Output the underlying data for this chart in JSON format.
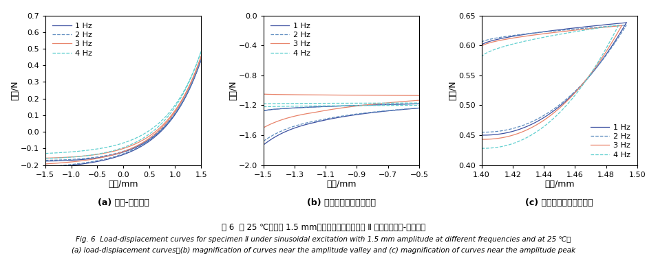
{
  "colors": {
    "1hz": "#3B4FA0",
    "2hz": "#5B8BBF",
    "3hz": "#E8836A",
    "4hz": "#5ECFCF"
  },
  "fig_width": 9.4,
  "fig_height": 3.76,
  "subplot_a": {
    "xlabel": "位移/mm",
    "ylabel": "载荷/N",
    "title": "(a) 载荷-位移曲线",
    "xlim": [
      -1.5,
      1.5
    ],
    "ylim": [
      -0.2,
      0.7
    ],
    "xticks": [
      -1.5,
      -1.0,
      -0.5,
      0.0,
      0.5,
      1.0,
      1.5
    ],
    "yticks": [
      -0.2,
      -0.1,
      0.0,
      0.1,
      0.2,
      0.3,
      0.4,
      0.5,
      0.6,
      0.7
    ]
  },
  "subplot_b": {
    "xlabel": "位移/mm",
    "ylabel": "载荷/N",
    "title": "(b) 振幅谷値附近曲线放大",
    "xlim": [
      -1.5,
      -0.5
    ],
    "ylim": [
      -2.0,
      0.0
    ],
    "xticks": [
      -1.5,
      -1.3,
      -1.1,
      -0.9,
      -0.7,
      -0.5
    ],
    "yticks": [
      -2.0,
      -1.6,
      -1.2,
      -0.8,
      -0.4,
      0.0
    ]
  },
  "subplot_c": {
    "xlabel": "位移/mm",
    "ylabel": "载荷/N",
    "title": "(c) 振幅峰値附近曲线放大",
    "xlim": [
      1.4,
      1.5
    ],
    "ylim": [
      0.4,
      0.65
    ],
    "xticks": [
      1.4,
      1.42,
      1.44,
      1.46,
      1.48,
      1.5
    ],
    "yticks": [
      0.4,
      0.45,
      0.5,
      0.55,
      0.6,
      0.65
    ]
  },
  "caption_cn": "图 6  在 25 ℃，振幅 1.5 mm、不同频率激励作用下 Ⅱ 类试样的载荷-位移曲线",
  "caption_en1": "Fig. 6  Load-displacement curves for specimen Ⅱ under sinusoidal excitation with 1.5 mm amplitude at different frequencies and at 25 ℃：",
  "caption_en2": "(a) load-displacement curves；(b) magnification of curves near the amplitude valley and (c) magnification of curves near the amplitude peak"
}
